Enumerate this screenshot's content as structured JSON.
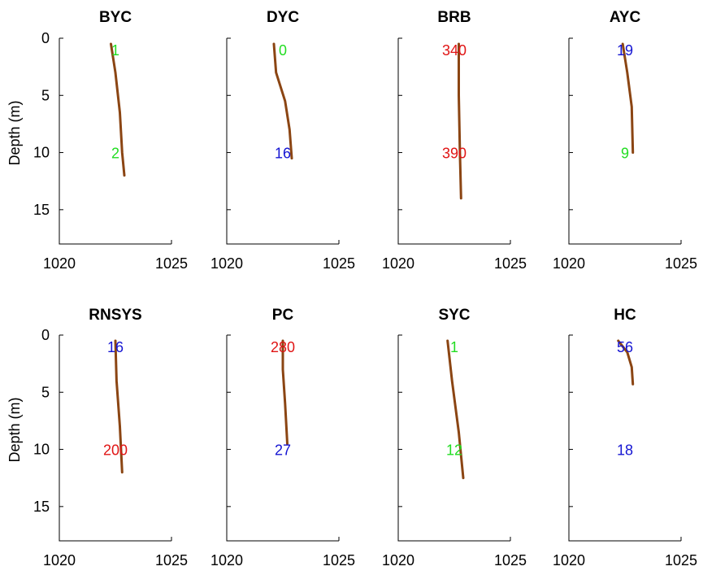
{
  "chart_data": [
    {
      "type": "line",
      "title": "BYC",
      "ylabel": "Depth (m)",
      "xlim": [
        1020,
        1025
      ],
      "ylim": [
        0,
        18
      ],
      "x_ticks": [
        "1020",
        "1025"
      ],
      "y_ticks": [
        "0",
        "5",
        "10",
        "15"
      ],
      "series": [
        {
          "points": [
            [
              1022.3,
              0.5
            ],
            [
              1022.5,
              3
            ],
            [
              1022.7,
              6.5
            ],
            [
              1022.8,
              10
            ],
            [
              1022.9,
              12
            ]
          ]
        }
      ],
      "annotations": [
        {
          "text": "1",
          "x": 1022.5,
          "y": 1,
          "color": "green"
        },
        {
          "text": "2",
          "x": 1022.5,
          "y": 10,
          "color": "green"
        }
      ]
    },
    {
      "type": "line",
      "title": "DYC",
      "xlim": [
        1020,
        1025
      ],
      "ylim": [
        0,
        18
      ],
      "x_ticks": [
        "1020",
        "1025"
      ],
      "y_ticks": [],
      "series": [
        {
          "points": [
            [
              1022.1,
              0.5
            ],
            [
              1022.2,
              3
            ],
            [
              1022.6,
              5.5
            ],
            [
              1022.8,
              8
            ],
            [
              1022.9,
              10.5
            ]
          ]
        }
      ],
      "annotations": [
        {
          "text": "0",
          "x": 1022.5,
          "y": 1,
          "color": "green"
        },
        {
          "text": "16",
          "x": 1022.5,
          "y": 10,
          "color": "blue"
        }
      ]
    },
    {
      "type": "line",
      "title": "BRB",
      "xlim": [
        1020,
        1025
      ],
      "ylim": [
        0,
        18
      ],
      "x_ticks": [
        "1020",
        "1025"
      ],
      "y_ticks": [],
      "series": [
        {
          "points": [
            [
              1022.7,
              0.5
            ],
            [
              1022.7,
              5
            ],
            [
              1022.75,
              10
            ],
            [
              1022.8,
              14
            ]
          ]
        }
      ],
      "annotations": [
        {
          "text": "340",
          "x": 1022.5,
          "y": 1,
          "color": "red"
        },
        {
          "text": "390",
          "x": 1022.5,
          "y": 10,
          "color": "red"
        }
      ]
    },
    {
      "type": "line",
      "title": "AYC",
      "xlim": [
        1020,
        1025
      ],
      "ylim": [
        0,
        18
      ],
      "x_ticks": [
        "1020",
        "1025"
      ],
      "y_ticks": [],
      "series": [
        {
          "points": [
            [
              1022.4,
              0.5
            ],
            [
              1022.6,
              3
            ],
            [
              1022.8,
              6
            ],
            [
              1022.85,
              10
            ]
          ]
        }
      ],
      "annotations": [
        {
          "text": "19",
          "x": 1022.5,
          "y": 1,
          "color": "blue"
        },
        {
          "text": "9",
          "x": 1022.5,
          "y": 10,
          "color": "green"
        }
      ]
    },
    {
      "type": "line",
      "title": "RNSYS",
      "ylabel": "Depth (m)",
      "xlim": [
        1020,
        1025
      ],
      "ylim": [
        0,
        18
      ],
      "x_ticks": [
        "1020",
        "1025"
      ],
      "y_ticks": [
        "0",
        "5",
        "10",
        "15"
      ],
      "series": [
        {
          "points": [
            [
              1022.5,
              0.5
            ],
            [
              1022.55,
              4
            ],
            [
              1022.7,
              8
            ],
            [
              1022.8,
              12
            ]
          ]
        }
      ],
      "annotations": [
        {
          "text": "16",
          "x": 1022.5,
          "y": 1,
          "color": "blue"
        },
        {
          "text": "200",
          "x": 1022.5,
          "y": 10,
          "color": "red"
        }
      ]
    },
    {
      "type": "line",
      "title": "PC",
      "xlim": [
        1020,
        1025
      ],
      "ylim": [
        0,
        18
      ],
      "x_ticks": [
        "1020",
        "1025"
      ],
      "y_ticks": [],
      "series": [
        {
          "points": [
            [
              1022.5,
              0.5
            ],
            [
              1022.5,
              3
            ],
            [
              1022.6,
              6
            ],
            [
              1022.7,
              9.5
            ]
          ]
        }
      ],
      "annotations": [
        {
          "text": "280",
          "x": 1022.5,
          "y": 1,
          "color": "red"
        },
        {
          "text": "27",
          "x": 1022.5,
          "y": 10,
          "color": "blue"
        }
      ]
    },
    {
      "type": "line",
      "title": "SYC",
      "xlim": [
        1020,
        1025
      ],
      "ylim": [
        0,
        18
      ],
      "x_ticks": [
        "1020",
        "1025"
      ],
      "y_ticks": [],
      "series": [
        {
          "points": [
            [
              1022.2,
              0.5
            ],
            [
              1022.4,
              4
            ],
            [
              1022.7,
              8.5
            ],
            [
              1022.9,
              12.5
            ]
          ]
        }
      ],
      "annotations": [
        {
          "text": "1",
          "x": 1022.5,
          "y": 1,
          "color": "green"
        },
        {
          "text": "12",
          "x": 1022.5,
          "y": 10,
          "color": "green"
        }
      ]
    },
    {
      "type": "line",
      "title": "HC",
      "xlim": [
        1020,
        1025
      ],
      "ylim": [
        0,
        18
      ],
      "x_ticks": [
        "1020",
        "1025"
      ],
      "y_ticks": [],
      "series": [
        {
          "points": [
            [
              1022.2,
              0.5
            ],
            [
              1022.6,
              1.5
            ],
            [
              1022.8,
              2.8
            ],
            [
              1022.85,
              4.3
            ]
          ]
        }
      ],
      "annotations": [
        {
          "text": "56",
          "x": 1022.5,
          "y": 1,
          "color": "blue"
        },
        {
          "text": "18",
          "x": 1022.5,
          "y": 10,
          "color": "blue"
        }
      ]
    }
  ],
  "colors": {
    "profile": "#8b4513",
    "green": "#22dd22",
    "blue": "#1414d2",
    "red": "#e01414",
    "axis": "#000000"
  }
}
